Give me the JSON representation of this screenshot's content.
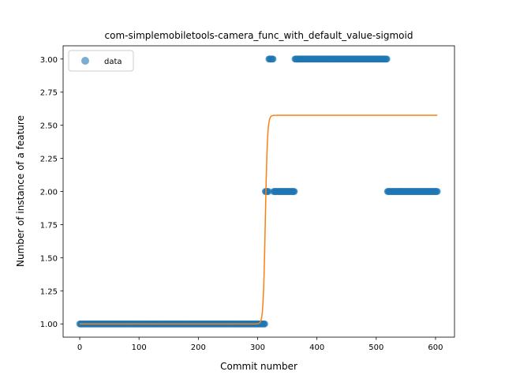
{
  "chart_data": {
    "type": "scatter",
    "title": "com-simplemobiletools-camera_func_with_default_value-sigmoid",
    "xlabel": "Commit number",
    "ylabel": "Number of instance of a feature",
    "xlim": [
      -28,
      632
    ],
    "ylim": [
      0.9,
      3.1
    ],
    "xticks": [
      0,
      100,
      200,
      300,
      400,
      500,
      600
    ],
    "yticks": [
      "1.00",
      "1.25",
      "1.50",
      "1.75",
      "2.00",
      "2.25",
      "2.50",
      "2.75",
      "3.00"
    ],
    "legend": {
      "position": "top-left",
      "entries": [
        "data"
      ]
    },
    "series": [
      {
        "name": "data",
        "kind": "scatter",
        "color": "#1f77b4",
        "segments": [
          {
            "x_start": 0,
            "x_end": 312,
            "y": 1
          },
          {
            "x_start": 313,
            "x_end": 318,
            "y": 2
          },
          {
            "x_start": 319,
            "x_end": 326,
            "y": 3
          },
          {
            "x_start": 327,
            "x_end": 362,
            "y": 2
          },
          {
            "x_start": 363,
            "x_end": 518,
            "y": 3
          },
          {
            "x_start": 519,
            "x_end": 603,
            "y": 2
          }
        ]
      },
      {
        "kind": "line",
        "color": "#ff7f0e",
        "sigmoid": {
          "low": 1.0,
          "high": 2.575,
          "center": 313,
          "k": 0.55,
          "x_start": 0,
          "x_end": 603
        }
      }
    ]
  }
}
